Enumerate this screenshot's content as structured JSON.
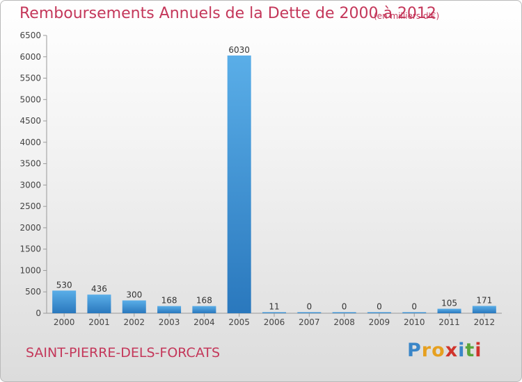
{
  "header": {
    "title": "Remboursements Annuels de la Dette de 2000 à 2012",
    "unit": "(en milliers d'€)"
  },
  "footer": {
    "commune": "SAINT-PIERRE-DELS-FORCATS",
    "logo_letters": [
      "P",
      "r",
      "o",
      "x",
      "i",
      "t",
      "i"
    ],
    "logo_colors": [
      "#3a86c8",
      "#e6a020",
      "#e6a020",
      "#d0342c",
      "#3a86c8",
      "#5aa53a",
      "#d0342c"
    ]
  },
  "chart_data": {
    "type": "bar",
    "title": "Remboursements Annuels de la Dette de 2000 à 2012",
    "categories": [
      "2000",
      "2001",
      "2002",
      "2003",
      "2004",
      "2005",
      "2006",
      "2007",
      "2008",
      "2009",
      "2010",
      "2011",
      "2012"
    ],
    "values": [
      530,
      436,
      300,
      168,
      168,
      6030,
      11,
      0,
      0,
      0,
      0,
      105,
      171
    ],
    "value_labels": [
      "530",
      "436",
      "300",
      "168",
      "168",
      "6030",
      "11",
      "0",
      "0",
      "0",
      "0",
      "105",
      "171"
    ],
    "xlabel": "",
    "ylabel": "",
    "ylim": [
      0,
      6500
    ],
    "yticks": [
      0,
      500,
      1000,
      1500,
      2000,
      2500,
      3000,
      3500,
      4000,
      4500,
      5000,
      5500,
      6000,
      6500
    ],
    "grid": false,
    "legend": "none",
    "bar_color": "#3d95d8"
  }
}
